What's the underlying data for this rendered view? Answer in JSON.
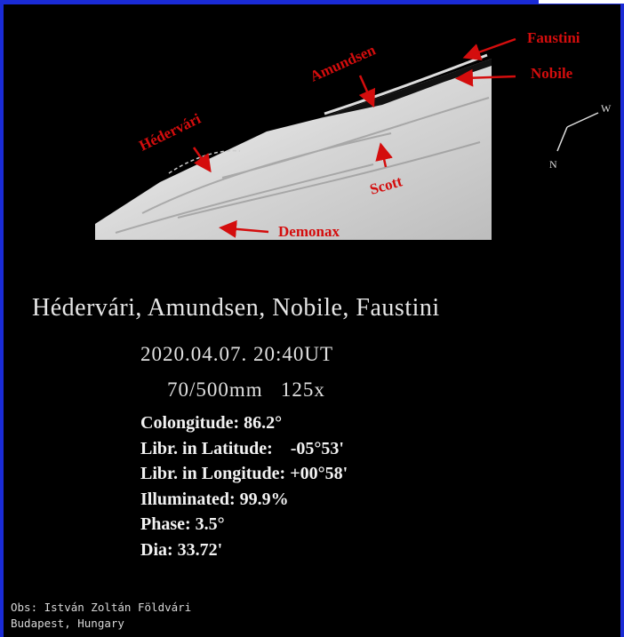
{
  "image_labels": {
    "hedervari": "Hédervári",
    "amundsen": "Amundsen",
    "faustini": "Faustini",
    "nobile": "Nobile",
    "scott": "Scott",
    "demonax": "Demonax",
    "west": "W",
    "north": "N"
  },
  "title": "Hédervári, Amundsen, Nobile, Faustini",
  "date": "2020.04.07. 20:40UT",
  "equipment": "70/500mm   125x",
  "parameters": [
    "Colongitude: 86.2°",
    "Libr. in Latitude:    -05°53'",
    "Libr. in Longitude: +00°58'",
    "Illuminated: 99.9%",
    "Phase: 3.5°",
    "Dia: 33.72'"
  ],
  "observer": [
    "Obs: István Zoltán Földvári",
    "Budapest, Hungary"
  ]
}
